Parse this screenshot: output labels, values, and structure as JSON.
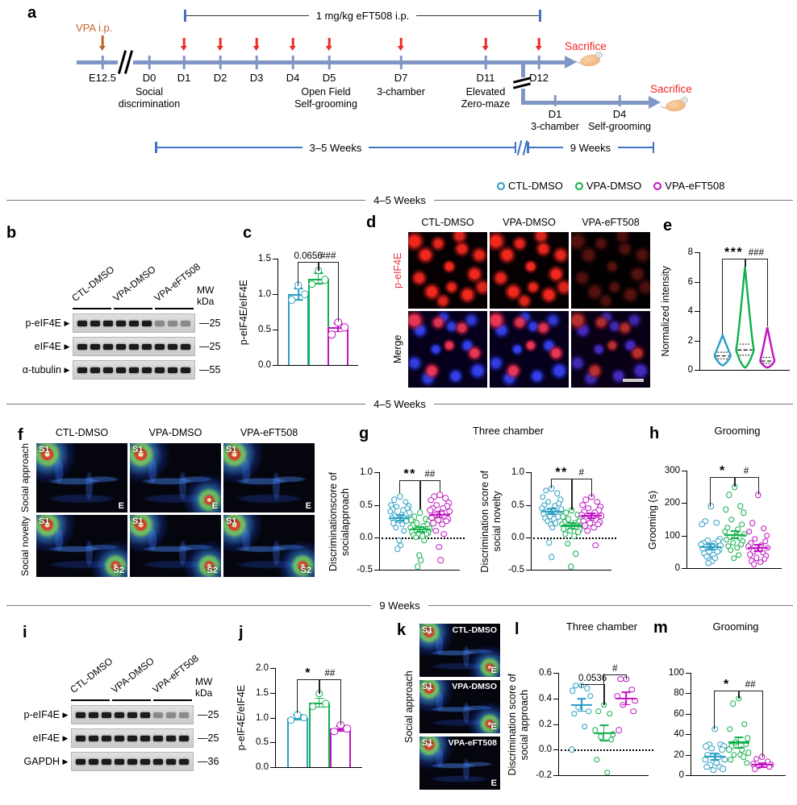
{
  "colors": {
    "ctl": "#2B9FC3",
    "vpa": "#0FAF4B",
    "eft": "#C113C1",
    "red": "#EE2B2B",
    "orange": "#C0622B",
    "timeline": "#8096C6",
    "bracket": "#4472C4"
  },
  "panel_labels": {
    "a": "a",
    "b": "b",
    "c": "c",
    "d": "d",
    "e": "e",
    "f": "f",
    "g": "g",
    "h": "h",
    "i": "i",
    "j": "j",
    "k": "k",
    "l": "l",
    "m": "m"
  },
  "dividers": {
    "week45_top": "4–5 Weeks",
    "week45": "4–5 Weeks",
    "week9": "9 Weeks"
  },
  "legend": {
    "items": [
      {
        "label": "CTL-DMSO",
        "color": "#2B9FC3"
      },
      {
        "label": "VPA-DMSO",
        "color": "#0FAF4B"
      },
      {
        "label": "VPA-eFT508",
        "color": "#C113C1"
      }
    ]
  },
  "panel_a": {
    "label": "a",
    "vpa_label": "VPA i.p.",
    "eft_bracket_label": "1 mg/kg eFT508 i.p.",
    "sacrifice_label": "Sacrifice",
    "ticks": [
      {
        "d": "E12.5",
        "x": 127
      },
      {
        "d": "D0",
        "x": 185
      },
      {
        "d": "D1",
        "x": 228
      },
      {
        "d": "D2",
        "x": 273
      },
      {
        "d": "D3",
        "x": 318
      },
      {
        "d": "D4",
        "x": 363
      },
      {
        "d": "D5",
        "x": 408
      },
      {
        "d": "D7",
        "x": 497
      },
      {
        "d": "D11",
        "x": 602
      },
      {
        "d": "D12",
        "x": 668
      }
    ],
    "injection_days": [
      "D1",
      "D2",
      "D3",
      "D4",
      "D5",
      "D7",
      "D11",
      "D12"
    ],
    "events": [
      {
        "x": 185,
        "lines": [
          "Social",
          "discrimination"
        ]
      },
      {
        "x": 404,
        "lines": [
          "Open Field",
          "Self-grooming"
        ]
      },
      {
        "x": 497,
        "lines": [
          "3-chamber"
        ]
      },
      {
        "x": 602,
        "lines": [
          "Elevated",
          "Zero-maze"
        ]
      }
    ],
    "branch_ticks": [
      {
        "d": "D1",
        "x": 688,
        "event": "3-chamber"
      },
      {
        "d": "D4",
        "x": 768,
        "event": "Self-grooming"
      }
    ],
    "period_labels": {
      "early": "3–5 Weeks",
      "late": "9 Weeks"
    }
  },
  "panel_b": {
    "label": "b",
    "lanes": [
      "CTL-DMSO",
      "VPA-DMSO",
      "VPA-eFT508"
    ],
    "mw_unit": [
      "MW",
      "kDa"
    ],
    "rows": [
      {
        "name": "p-eIF4E",
        "mw": "25",
        "weak_last": true
      },
      {
        "name": "eIF4E",
        "mw": "25"
      },
      {
        "name": "α-tubulin",
        "mw": "55"
      }
    ]
  },
  "panel_i": {
    "label": "i",
    "lanes": [
      "CTL-DMSO",
      "VPA-DMSO",
      "VPA-eFT508"
    ],
    "mw_unit": [
      "MW",
      "kDa"
    ],
    "rows": [
      {
        "name": "p-eIF4E",
        "mw": "25",
        "weak_last": true
      },
      {
        "name": "eIF4E",
        "mw": "25"
      },
      {
        "name": "GAPDH",
        "mw": "36"
      }
    ]
  },
  "panel_d": {
    "label": "d",
    "columns": [
      "CTL-DMSO",
      "VPA-DMSO",
      "VPA-eFT508"
    ],
    "row_labels": [
      "p-eIF4E",
      "Merge"
    ]
  },
  "panel_f": {
    "label": "f",
    "columns": [
      "CTL-DMSO",
      "VPA-DMSO",
      "VPA-eFT508"
    ],
    "row_labels": [
      "Social approach",
      "Social novelty"
    ],
    "rows": [
      {
        "tl": "S1",
        "br": "E"
      },
      {
        "tl": "S1",
        "br": "S2"
      }
    ]
  },
  "panel_k": {
    "label": "k",
    "side_label": "Social approach",
    "images": [
      {
        "title": "CTL-DMSO",
        "tl": "S1",
        "br": "E"
      },
      {
        "title": "VPA-DMSO",
        "tl": "S1",
        "br": "E"
      },
      {
        "title": "VPA-eFT508",
        "tl": "S1",
        "br": "E"
      }
    ]
  },
  "chart_data": {
    "palette": [
      "#2B9FC3",
      "#0FAF4B",
      "#C113C1"
    ],
    "categories": [
      "CTL-DMSO",
      "VPA-DMSO",
      "VPA-eFT508"
    ],
    "c": {
      "type": "bar",
      "ylabel_lines": [
        "p-eIF4E/eIF4E"
      ],
      "ylim": [
        0,
        1.5
      ],
      "yticks": [
        "0.0",
        "0.5",
        "1.0",
        "1.5"
      ],
      "values": [
        1.0,
        1.22,
        0.53
      ],
      "errors": [
        0.08,
        0.07,
        0.06
      ],
      "points": [
        [
          0.92,
          1.0,
          1.12
        ],
        [
          1.14,
          1.2,
          1.33
        ],
        [
          0.43,
          0.53,
          0.6
        ]
      ],
      "sig": [
        {
          "between": [
            0,
            1
          ],
          "text": "0.0656",
          "top": 4,
          "legs": [
            30,
            11
          ]
        },
        {
          "between": [
            1,
            2
          ],
          "text": "###",
          "top": 4,
          "legs": [
            11,
            74
          ]
        }
      ]
    },
    "e": {
      "type": "violin",
      "ylabel_lines": [
        "Normalized intensity"
      ],
      "ylim": [
        0,
        8
      ],
      "yticks": [
        "0",
        "2",
        "4",
        "6",
        "8"
      ],
      "groups": [
        {
          "min": 0.3,
          "q1": 0.75,
          "median": 0.95,
          "q3": 1.2,
          "max": 2.35,
          "hw": 10
        },
        {
          "min": 0.15,
          "q1": 1.0,
          "median": 1.35,
          "q3": 1.75,
          "max": 7.0,
          "hw": 11
        },
        {
          "min": 0.15,
          "q1": 0.45,
          "median": 0.6,
          "q3": 0.85,
          "max": 2.9,
          "hw": 9
        }
      ],
      "sig": [
        {
          "between": [
            0,
            1
          ],
          "text": "***",
          "top": 8,
          "legs": [
            94,
            10
          ]
        },
        {
          "between": [
            1,
            2
          ],
          "text": "###",
          "top": 8,
          "legs": [
            10,
            84
          ]
        }
      ]
    },
    "g1": {
      "type": "scatter",
      "title": "Three chamber",
      "ylabel_lines": [
        "Discriminationscore of",
        "socialapproach"
      ],
      "ylim": [
        -0.5,
        1.0
      ],
      "yticks": [
        "-0.5",
        "0.0",
        "0.5",
        "1.0"
      ],
      "zeroline": true,
      "groups": [
        {
          "mean": 0.3,
          "sem": 0.04,
          "values": [
            0.63,
            0.58,
            0.55,
            0.5,
            0.48,
            0.47,
            0.45,
            0.43,
            0.42,
            0.4,
            0.38,
            0.35,
            0.33,
            0.3,
            0.3,
            0.28,
            0.27,
            0.25,
            0.22,
            0.2,
            0.15,
            0.1,
            -0.05,
            -0.12,
            -0.18
          ]
        },
        {
          "mean": 0.12,
          "sem": 0.04,
          "values": [
            0.38,
            0.32,
            0.28,
            0.27,
            0.25,
            0.22,
            0.2,
            0.18,
            0.17,
            0.15,
            0.13,
            0.12,
            0.1,
            0.1,
            0.08,
            0.07,
            0.05,
            0.05,
            0.03,
            0.02,
            0.0,
            -0.05,
            -0.28,
            -0.35,
            -0.45
          ]
        },
        {
          "mean": 0.35,
          "sem": 0.05,
          "values": [
            0.65,
            0.63,
            0.6,
            0.57,
            0.53,
            0.5,
            0.48,
            0.45,
            0.45,
            0.42,
            0.4,
            0.38,
            0.35,
            0.32,
            0.3,
            0.28,
            0.27,
            0.25,
            0.22,
            0.2,
            0.1,
            0.05,
            -0.15,
            -0.35
          ]
        }
      ],
      "sig": [
        {
          "between": [
            0,
            1
          ],
          "text": "**",
          "top": 10,
          "legs": [
            16,
            36
          ]
        },
        {
          "between": [
            1,
            2
          ],
          "text": "##",
          "top": 10,
          "legs": [
            36,
            14
          ]
        }
      ]
    },
    "g2": {
      "type": "scatter",
      "ylabel_lines": [
        "Discrimination score of",
        "social novelty"
      ],
      "ylim": [
        -0.5,
        1.0
      ],
      "yticks": [
        "-0.5",
        "0.0",
        "0.5",
        "1.0"
      ],
      "zeroline": true,
      "groups": [
        {
          "mean": 0.4,
          "sem": 0.04,
          "values": [
            0.75,
            0.72,
            0.68,
            0.62,
            0.58,
            0.55,
            0.52,
            0.5,
            0.48,
            0.45,
            0.43,
            0.42,
            0.4,
            0.38,
            0.37,
            0.35,
            0.33,
            0.32,
            0.3,
            0.28,
            0.25,
            0.22,
            0.2,
            0.15,
            -0.08,
            -0.3
          ]
        },
        {
          "mean": 0.18,
          "sem": 0.04,
          "values": [
            0.42,
            0.38,
            0.35,
            0.32,
            0.3,
            0.28,
            0.25,
            0.23,
            0.22,
            0.2,
            0.18,
            0.17,
            0.15,
            0.15,
            0.13,
            0.12,
            0.1,
            0.08,
            0.05,
            0.02,
            -0.1,
            -0.25,
            -0.45
          ]
        },
        {
          "mean": 0.33,
          "sem": 0.04,
          "values": [
            0.62,
            0.58,
            0.55,
            0.5,
            0.47,
            0.45,
            0.42,
            0.4,
            0.38,
            0.35,
            0.33,
            0.3,
            0.28,
            0.27,
            0.25,
            0.23,
            0.22,
            0.2,
            0.18,
            0.15,
            0.1,
            -0.12
          ]
        }
      ],
      "sig": [
        {
          "between": [
            0,
            1
          ],
          "text": "**",
          "top": 8,
          "legs": [
            12,
            39
          ]
        },
        {
          "between": [
            1,
            2
          ],
          "text": "#",
          "top": 8,
          "legs": [
            39,
            23
          ]
        }
      ]
    },
    "h": {
      "type": "scatter",
      "title": "Grooming",
      "ylabel_lines": [
        "Grooming (s)"
      ],
      "ylim": [
        0,
        300
      ],
      "yticks": [
        "0",
        "100",
        "200",
        "300"
      ],
      "groups": [
        {
          "mean": 65,
          "sem": 9,
          "values": [
            190,
            145,
            140,
            135,
            90,
            85,
            82,
            78,
            75,
            72,
            70,
            68,
            65,
            62,
            60,
            55,
            52,
            50,
            45,
            40,
            35,
            30,
            25,
            20,
            15
          ]
        },
        {
          "mean": 102,
          "sem": 11,
          "values": [
            250,
            225,
            190,
            180,
            170,
            150,
            135,
            125,
            118,
            112,
            105,
            100,
            95,
            92,
            88,
            82,
            78,
            72,
            68,
            62,
            55,
            40,
            30
          ]
        },
        {
          "mean": 62,
          "sem": 10,
          "values": [
            225,
            138,
            122,
            112,
            100,
            90,
            82,
            76,
            70,
            66,
            62,
            58,
            52,
            48,
            42,
            38,
            32,
            28,
            22,
            18,
            12
          ]
        }
      ],
      "sig": [
        {
          "between": [
            0,
            1
          ],
          "text": "*",
          "top": 8,
          "legs": [
            37,
            12
          ]
        },
        {
          "between": [
            1,
            2
          ],
          "text": "#",
          "top": 8,
          "legs": [
            12,
            22
          ]
        }
      ]
    },
    "j": {
      "type": "bar",
      "ylabel_lines": [
        "p-eIF4E/eIF4E"
      ],
      "ylim": [
        0,
        2
      ],
      "yticks": [
        "0.0",
        "0.5",
        "1.0",
        "1.5",
        "2.0"
      ],
      "values": [
        1.0,
        1.3,
        0.78
      ],
      "errors": [
        0.05,
        0.09,
        0.05
      ],
      "points": [
        [
          0.95,
          1.0,
          1.05
        ],
        [
          1.22,
          1.28,
          1.48
        ],
        [
          0.72,
          0.78,
          0.85
        ]
      ],
      "sig": [
        {
          "between": [
            0,
            1
          ],
          "text": "*",
          "top": 14,
          "legs": [
            42,
            18
          ]
        },
        {
          "between": [
            1,
            2
          ],
          "text": "##",
          "top": 14,
          "legs": [
            18,
            57
          ]
        }
      ]
    },
    "l": {
      "type": "scatter",
      "title": "Three chamber",
      "ylabel_lines": [
        "Discrimination score of",
        "social approach"
      ],
      "ylim": [
        -0.2,
        0.6
      ],
      "yticks": [
        "-0.2",
        "0.0",
        "0.2",
        "0.4",
        "0.6"
      ],
      "zeroline": true,
      "groups": [
        {
          "mean": 0.35,
          "sem": 0.05,
          "values": [
            0.5,
            0.5,
            0.48,
            0.46,
            0.42,
            0.33,
            0.3,
            0.28,
            0.18,
            0.0
          ]
        },
        {
          "mean": 0.13,
          "sem": 0.06,
          "values": [
            0.35,
            0.3,
            0.28,
            0.15,
            0.12,
            0.1,
            0.08,
            -0.08,
            -0.18
          ]
        },
        {
          "mean": 0.4,
          "sem": 0.05,
          "values": [
            0.55,
            0.55,
            0.47,
            0.42,
            0.38,
            0.35,
            0.3,
            0.15
          ]
        }
      ],
      "sig": [
        {
          "between": [
            0,
            1
          ],
          "text": "0.0536",
          "top": 14,
          "legs": [
            4,
            26
          ]
        },
        {
          "between": [
            1,
            2
          ],
          "text": "#",
          "top": 2,
          "legs": [
            38,
            6
          ]
        }
      ]
    },
    "m": {
      "type": "scatter",
      "title": "Grooming",
      "ylabel_lines": [],
      "ylim": [
        0,
        100
      ],
      "yticks": [
        "0",
        "20",
        "40",
        "60",
        "80",
        "100"
      ],
      "groups": [
        {
          "mean": 18,
          "sem": 3,
          "values": [
            45,
            30,
            30,
            28,
            28,
            26,
            25,
            20,
            18,
            15,
            15,
            12,
            10,
            8,
            8,
            6,
            5
          ]
        },
        {
          "mean": 32,
          "sem": 5,
          "values": [
            75,
            70,
            50,
            45,
            36,
            32,
            30,
            28,
            25,
            25,
            22,
            20,
            20,
            18,
            15,
            12
          ]
        },
        {
          "mean": 10,
          "sem": 2,
          "values": [
            18,
            16,
            13,
            11,
            10,
            9,
            8,
            6
          ]
        }
      ],
      "sig": [
        {
          "between": [
            0,
            1
          ],
          "text": "*",
          "top": 22,
          "legs": [
            48,
            10
          ]
        },
        {
          "between": [
            1,
            2
          ],
          "text": "##",
          "top": 22,
          "legs": [
            10,
            83
          ]
        }
      ]
    }
  }
}
